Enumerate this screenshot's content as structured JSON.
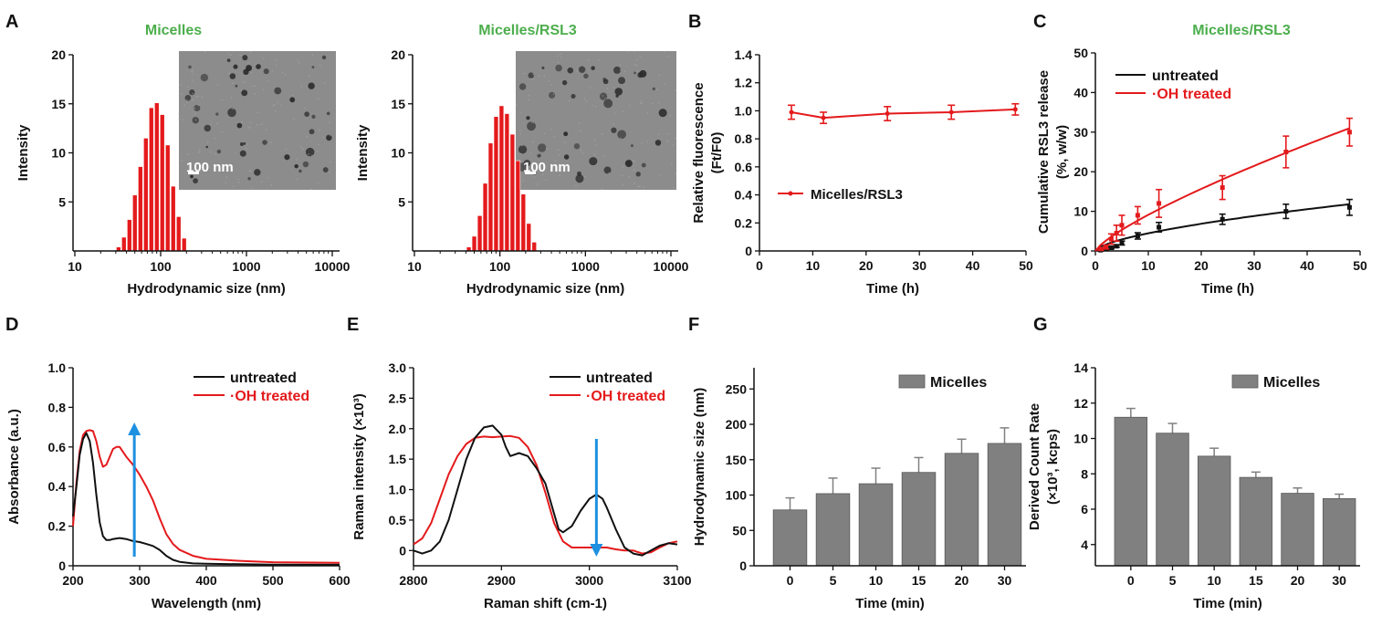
{
  "colors": {
    "red": "#e41a1c",
    "black": "#111111",
    "green": "#4cae4c",
    "blue": "#1e90e0",
    "bar": "#808080",
    "tem_bg": "#8c8c8c"
  },
  "panel_letters": [
    "A",
    "B",
    "C",
    "D",
    "E",
    "F",
    "G"
  ],
  "chart_data": [
    {
      "id": "A1",
      "type": "bar",
      "title": "Micelles",
      "xlabel": "Hydrodynamic size (nm)",
      "ylabel": "Intensity",
      "xscale": "log",
      "xlim": [
        10,
        10000
      ],
      "ylim": [
        0,
        20
      ],
      "x_ticks": [
        "10",
        "100",
        "1000",
        "10000"
      ],
      "y_ticks": [
        "5",
        "10",
        "15",
        "20"
      ],
      "inset": {
        "kind": "TEM micrograph",
        "scale_bar": "100 nm"
      },
      "x": [
        32.7,
        37.8,
        43.8,
        50.7,
        58.8,
        68.1,
        78.8,
        91.3,
        105.7,
        122.4,
        141.8,
        164.2,
        190.1
      ],
      "values": [
        0.4,
        1.4,
        3.2,
        5.7,
        8.6,
        11.5,
        14.6,
        15.1,
        13.9,
        10.8,
        6.6,
        3.5,
        1.3
      ]
    },
    {
      "id": "A2",
      "type": "bar",
      "title": "Micelles/RSL3",
      "xlabel": "Hydrodynamic size (nm)",
      "ylabel": "Intensity",
      "xscale": "log",
      "xlim": [
        10,
        10000
      ],
      "ylim": [
        0,
        20
      ],
      "x_ticks": [
        "10",
        "100",
        "1000",
        "10000"
      ],
      "y_ticks": [
        "5",
        "10",
        "15",
        "20"
      ],
      "inset": {
        "kind": "TEM micrograph",
        "scale_bar": "100 nm"
      },
      "x": [
        43.8,
        50.7,
        58.8,
        68.1,
        78.8,
        91.3,
        105.7,
        122.4,
        141.8,
        164.2,
        190.1,
        220.2,
        255.0
      ],
      "values": [
        0.4,
        1.5,
        3.6,
        6.9,
        11.0,
        13.7,
        14.8,
        14.0,
        11.9,
        9.2,
        5.8,
        2.8,
        0.9
      ]
    },
    {
      "id": "B",
      "type": "line",
      "xlabel": "Time (h)",
      "ylabel": "Relative fluorescence",
      "ylabel2": "(Ft/F0)",
      "xlim": [
        0,
        50
      ],
      "ylim": [
        0,
        1.4
      ],
      "x_ticks": [
        "0",
        "10",
        "20",
        "30",
        "40",
        "50"
      ],
      "y_ticks": [
        "0",
        "0.2",
        "0.4",
        "0.6",
        "0.8",
        "1.0",
        "1.2",
        "1.4"
      ],
      "legend_position": "middle-left",
      "series": [
        {
          "name": "Micelles/RSL3",
          "color": "#e41a1c",
          "x": [
            6,
            12,
            24,
            36,
            48
          ],
          "y": [
            0.99,
            0.95,
            0.98,
            0.99,
            1.01
          ],
          "err": [
            0.05,
            0.04,
            0.05,
            0.05,
            0.04
          ]
        }
      ]
    },
    {
      "id": "C",
      "type": "line",
      "title": "Micelles/RSL3",
      "xlabel": "Time (h)",
      "ylabel": "Cumulative RSL3 release",
      "ylabel2": "(%, w/w)",
      "xlim": [
        0,
        50
      ],
      "ylim": [
        0,
        50
      ],
      "x_ticks": [
        "0",
        "10",
        "20",
        "30",
        "40",
        "50"
      ],
      "y_ticks": [
        "0",
        "10",
        "20",
        "30",
        "40",
        "50"
      ],
      "legend_position": "top-left",
      "series": [
        {
          "name": "untreated",
          "color": "#111111",
          "x": [
            1,
            2,
            3,
            4,
            5,
            8,
            12,
            24,
            36,
            48
          ],
          "y": [
            0.2,
            0.5,
            0.8,
            1.2,
            2.0,
            3.8,
            6.0,
            8.0,
            10.0,
            11.0
          ],
          "err": [
            0.2,
            0.2,
            0.3,
            0.3,
            0.5,
            0.8,
            1.2,
            1.3,
            1.8,
            2.0
          ]
        },
        {
          "name": "·OH treated",
          "color": "#e41a1c",
          "x": [
            1,
            2,
            3,
            4,
            5,
            8,
            12,
            24,
            36,
            48
          ],
          "y": [
            0.5,
            1.0,
            3.0,
            4.5,
            6.5,
            9.0,
            12.0,
            16.0,
            25.0,
            30.0
          ],
          "err": [
            0.3,
            0.5,
            1.3,
            2.0,
            2.5,
            2.2,
            3.5,
            3.0,
            4.0,
            3.5
          ]
        }
      ]
    },
    {
      "id": "D",
      "type": "line",
      "xlabel": "Wavelength (nm)",
      "ylabel": "Absorbance (a.u.)",
      "xlim": [
        200,
        600
      ],
      "ylim": [
        0,
        1.0
      ],
      "x_ticks": [
        "200",
        "300",
        "400",
        "500",
        "600"
      ],
      "y_ticks": [
        "0",
        "0.2",
        "0.4",
        "0.6",
        "0.8",
        "1.0"
      ],
      "legend_position": "top-right",
      "arrow": {
        "direction": "up",
        "x": 292
      },
      "series": [
        {
          "name": "untreated",
          "color": "#111111",
          "x": [
            200,
            205,
            210,
            215,
            220,
            225,
            230,
            235,
            240,
            245,
            250,
            255,
            260,
            270,
            280,
            290,
            300,
            310,
            320,
            330,
            340,
            350,
            360,
            380,
            400,
            450,
            500,
            600
          ],
          "y": [
            0.25,
            0.4,
            0.56,
            0.64,
            0.67,
            0.63,
            0.52,
            0.36,
            0.22,
            0.15,
            0.13,
            0.13,
            0.135,
            0.14,
            0.135,
            0.125,
            0.12,
            0.11,
            0.1,
            0.08,
            0.05,
            0.03,
            0.02,
            0.012,
            0.01,
            0.008,
            0.006,
            0.005
          ]
        },
        {
          "name": "·OH treated",
          "color": "#e41a1c",
          "x": [
            200,
            205,
            210,
            215,
            220,
            225,
            230,
            235,
            240,
            245,
            250,
            255,
            260,
            265,
            270,
            280,
            290,
            300,
            310,
            320,
            330,
            340,
            350,
            360,
            380,
            400,
            450,
            500,
            600
          ],
          "y": [
            0.2,
            0.42,
            0.58,
            0.66,
            0.68,
            0.685,
            0.68,
            0.63,
            0.55,
            0.5,
            0.51,
            0.55,
            0.59,
            0.6,
            0.6,
            0.55,
            0.51,
            0.46,
            0.4,
            0.33,
            0.24,
            0.16,
            0.11,
            0.08,
            0.05,
            0.035,
            0.025,
            0.018,
            0.015
          ]
        }
      ]
    },
    {
      "id": "E",
      "type": "line",
      "xlabel": "Raman shift (cm-1)",
      "ylabel": "Raman intensity (×10³)",
      "xlim": [
        2800,
        3100
      ],
      "ylim": [
        -0.25,
        3.0
      ],
      "x_ticks": [
        "2800",
        "2900",
        "3000",
        "3100"
      ],
      "y_ticks": [
        "0",
        "0.5",
        "1.0",
        "1.5",
        "2.0",
        "2.5",
        "3.0"
      ],
      "legend_position": "top-right",
      "arrow": {
        "direction": "down",
        "x": 3008
      },
      "series": [
        {
          "name": "untreated",
          "color": "#111111",
          "x": [
            2800,
            2810,
            2820,
            2830,
            2840,
            2850,
            2860,
            2870,
            2880,
            2890,
            2900,
            2905,
            2910,
            2920,
            2930,
            2940,
            2950,
            2960,
            2965,
            2970,
            2980,
            2990,
            3000,
            3008,
            3015,
            3020,
            3030,
            3040,
            3050,
            3060,
            3070,
            3080,
            3090,
            3100
          ],
          "y": [
            0.0,
            -0.05,
            0.0,
            0.15,
            0.5,
            1.0,
            1.5,
            1.85,
            2.02,
            2.05,
            1.9,
            1.7,
            1.55,
            1.6,
            1.55,
            1.35,
            1.1,
            0.6,
            0.35,
            0.3,
            0.4,
            0.65,
            0.85,
            0.92,
            0.85,
            0.7,
            0.35,
            0.05,
            -0.05,
            -0.08,
            0.0,
            0.08,
            0.12,
            0.1
          ]
        },
        {
          "name": "·OH treated",
          "color": "#e41a1c",
          "x": [
            2800,
            2810,
            2820,
            2830,
            2840,
            2850,
            2860,
            2870,
            2880,
            2890,
            2900,
            2910,
            2920,
            2930,
            2940,
            2950,
            2960,
            2970,
            2980,
            2990,
            3000,
            3010,
            3020,
            3030,
            3040,
            3050,
            3060,
            3070,
            3080,
            3090,
            3100
          ],
          "y": [
            0.1,
            0.2,
            0.45,
            0.85,
            1.25,
            1.55,
            1.75,
            1.85,
            1.87,
            1.86,
            1.87,
            1.88,
            1.85,
            1.7,
            1.4,
            0.95,
            0.45,
            0.15,
            0.05,
            0.05,
            0.05,
            0.05,
            0.05,
            0.02,
            0.0,
            0.0,
            -0.05,
            -0.03,
            0.05,
            0.12,
            0.15
          ]
        }
      ]
    },
    {
      "id": "F",
      "type": "bar",
      "xlabel": "Time (min)",
      "ylabel": "Hydrodynamic size (nm)",
      "categories": [
        "0",
        "5",
        "10",
        "15",
        "20",
        "30"
      ],
      "ylim": [
        0,
        280
      ],
      "y_ticks": [
        "0",
        "50",
        "100",
        "150",
        "200",
        "250"
      ],
      "legend_position": "top-right",
      "series": [
        {
          "name": "Micelles",
          "color": "#808080",
          "values": [
            79,
            102,
            116,
            132,
            159,
            173
          ],
          "err": [
            17,
            22,
            22,
            21,
            20,
            22
          ]
        }
      ]
    },
    {
      "id": "G",
      "type": "bar",
      "xlabel": "Time (min)",
      "ylabel": "Derived Count Rate",
      "ylabel2": "(×10³, kcps)",
      "categories": [
        "0",
        "5",
        "10",
        "15",
        "20",
        "30"
      ],
      "ylim": [
        2.8,
        14
      ],
      "y_ticks": [
        "4",
        "6",
        "8",
        "10",
        "12",
        "14"
      ],
      "legend_position": "top-right",
      "series": [
        {
          "name": "Micelles",
          "color": "#808080",
          "values": [
            11.2,
            10.3,
            9.0,
            7.8,
            6.9,
            6.6
          ],
          "err": [
            0.5,
            0.55,
            0.45,
            0.3,
            0.3,
            0.25
          ]
        }
      ]
    }
  ]
}
